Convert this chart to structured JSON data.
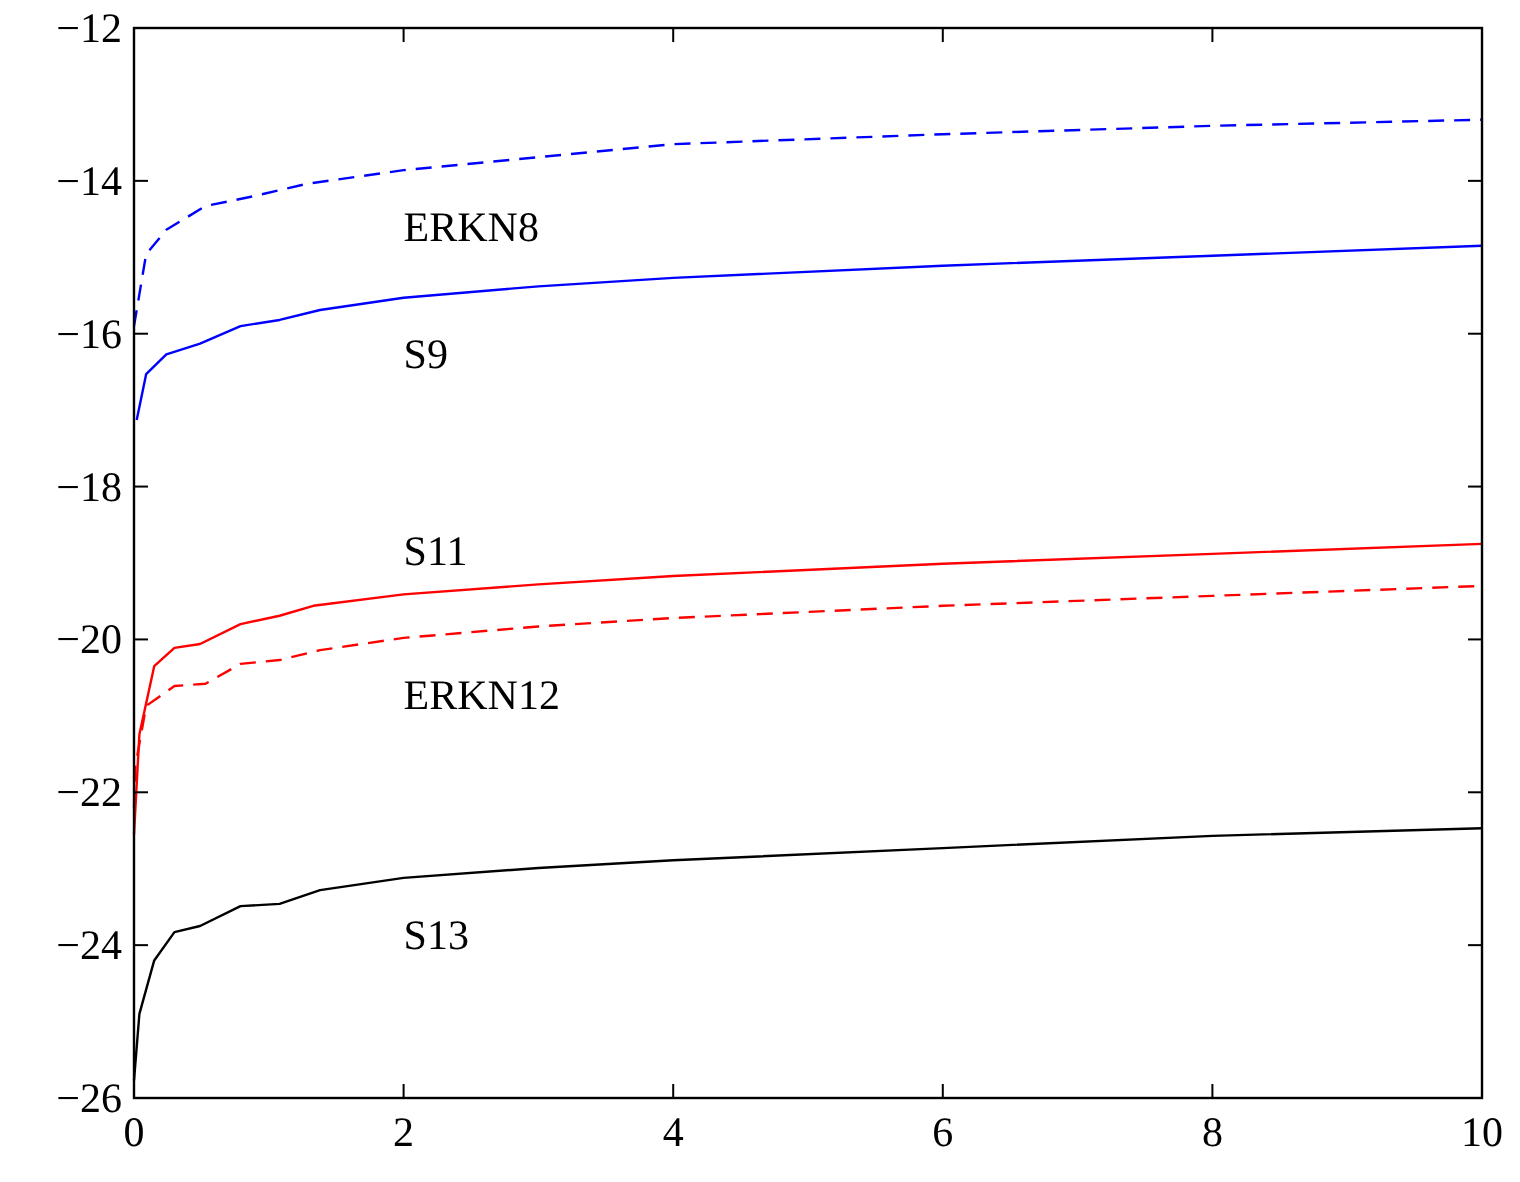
{
  "chart_data": {
    "type": "line",
    "xlim": [
      0,
      10
    ],
    "ylim": [
      -26,
      -12
    ],
    "xticks": [
      0,
      2,
      4,
      6,
      8,
      10
    ],
    "yticks": [
      -26,
      -24,
      -22,
      -20,
      -18,
      -16,
      -14,
      -12
    ],
    "grid": false,
    "series": [
      {
        "name": "ERKN8",
        "color": "#0000ff",
        "line_style": "dashed",
        "x": [
          0,
          0.09,
          0.24,
          0.53,
          0.89,
          1.28,
          2,
          4,
          6,
          8,
          10
        ],
        "values": [
          -15.9,
          -14.96,
          -14.64,
          -14.33,
          -14.2,
          -14.04,
          -13.86,
          -13.52,
          -13.39,
          -13.28,
          -13.2
        ]
      },
      {
        "name": "S9",
        "color": "#0000ff",
        "line_style": "solid",
        "x": [
          0.02,
          0.09,
          0.24,
          0.49,
          0.79,
          1.08,
          1.38,
          2,
          3,
          4,
          6,
          8,
          10
        ],
        "values": [
          -17.13,
          -16.53,
          -16.27,
          -16.13,
          -15.9,
          -15.82,
          -15.69,
          -15.53,
          -15.38,
          -15.27,
          -15.11,
          -14.98,
          -14.85
        ]
      },
      {
        "name": "S11",
        "color": "#ff0000",
        "line_style": "solid",
        "x": [
          0,
          0.04,
          0.15,
          0.3,
          0.49,
          0.79,
          1.08,
          1.33,
          2,
          3,
          4,
          6,
          8,
          10
        ],
        "values": [
          -22.55,
          -21.24,
          -20.35,
          -20.11,
          -20.06,
          -19.8,
          -19.69,
          -19.56,
          -19.41,
          -19.28,
          -19.17,
          -19.01,
          -18.88,
          -18.75
        ]
      },
      {
        "name": "ERKN12",
        "color": "#ff0000",
        "line_style": "dashed",
        "x": [
          0,
          0.01,
          0.09,
          0.3,
          0.53,
          0.79,
          1.08,
          1.38,
          2,
          3,
          4,
          6,
          8,
          10
        ],
        "values": [
          -22.2,
          -21.66,
          -20.87,
          -20.61,
          -20.58,
          -20.32,
          -20.27,
          -20.14,
          -19.98,
          -19.83,
          -19.72,
          -19.56,
          -19.43,
          -19.3
        ]
      },
      {
        "name": "S13",
        "color": "#000000",
        "line_style": "solid",
        "x": [
          0,
          0.04,
          0.15,
          0.3,
          0.49,
          0.79,
          1.08,
          1.38,
          2,
          3,
          4,
          6,
          8,
          10
        ],
        "values": [
          -25.77,
          -24.9,
          -24.2,
          -23.83,
          -23.75,
          -23.49,
          -23.46,
          -23.28,
          -23.12,
          -22.99,
          -22.89,
          -22.73,
          -22.57,
          -22.47
        ]
      }
    ]
  }
}
